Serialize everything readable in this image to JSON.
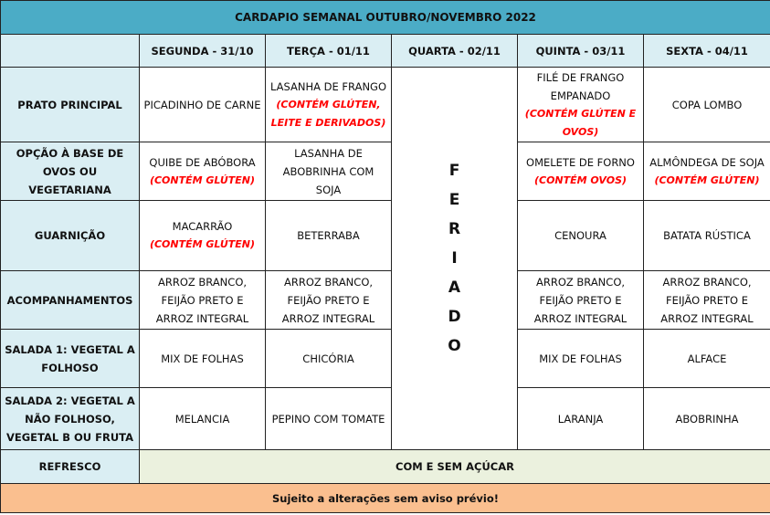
{
  "title": "CARDAPIO SEMANAL OUTUBRO/NOVEMBRO 2022",
  "days": [
    "SEGUNDA - 31/10",
    "TERÇA - 01/11",
    "QUARTA - 02/11",
    "QUINTA - 03/11",
    "SEXTA - 04/11"
  ],
  "holiday_letters": [
    "F",
    "E",
    "R",
    "I",
    "A",
    "D",
    "O"
  ],
  "rows": [
    {
      "label": "PRATO PRINCIPAL",
      "cells": [
        {
          "text": "PICADINHO DE CARNE",
          "note": ""
        },
        {
          "text": "LASANHA DE FRANGO",
          "note": "(CONTÉM GLÚTEN, LEITE E DERIVADOS)"
        },
        {
          "text": "FILÉ DE FRANGO EMPANADO",
          "note": "(CONTÉM GLÚTEN E OVOS)"
        },
        {
          "text": "COPA LOMBO",
          "note": ""
        }
      ]
    },
    {
      "label": "OPÇÃO À BASE DE OVOS OU VEGETARIANA",
      "cells": [
        {
          "text": "QUIBE DE ABÓBORA",
          "note": "(CONTÉM GLÚTEN)"
        },
        {
          "text": "LASANHA DE ABOBRINHA COM SOJA",
          "note": ""
        },
        {
          "text": "OMELETE DE FORNO",
          "note": "(CONTÉM OVOS)"
        },
        {
          "text": "ALMÔNDEGA DE SOJA",
          "note": "(CONTÉM GLÚTEN)"
        }
      ]
    },
    {
      "label": "GUARNIÇÃO",
      "cells": [
        {
          "text": "MACARRÃO",
          "note": "(CONTÉM GLÚTEN)"
        },
        {
          "text": "BETERRABA",
          "note": ""
        },
        {
          "text": "CENOURA",
          "note": ""
        },
        {
          "text": "BATATA RÚSTICA",
          "note": ""
        }
      ]
    },
    {
      "label": "ACOMPANHAMENTOS",
      "cells": [
        {
          "text": "ARROZ BRANCO, FEIJÃO PRETO E ARROZ INTEGRAL",
          "note": ""
        },
        {
          "text": "ARROZ BRANCO, FEIJÃO PRETO E ARROZ INTEGRAL",
          "note": ""
        },
        {
          "text": "ARROZ BRANCO, FEIJÃO PRETO E ARROZ INTEGRAL",
          "note": ""
        },
        {
          "text": "ARROZ BRANCO, FEIJÃO PRETO E ARROZ INTEGRAL",
          "note": ""
        }
      ]
    },
    {
      "label": "SALADA 1: VEGETAL A FOLHOSO",
      "cells": [
        {
          "text": "MIX DE FOLHAS",
          "note": ""
        },
        {
          "text": "CHICÓRIA",
          "note": ""
        },
        {
          "text": "MIX DE FOLHAS",
          "note": ""
        },
        {
          "text": "ALFACE",
          "note": ""
        }
      ]
    },
    {
      "label": "SALADA 2: VEGETAL A NÃO FOLHOSO, VEGETAL B OU FRUTA",
      "cells": [
        {
          "text": "MELANCIA",
          "note": ""
        },
        {
          "text": "PEPINO COM TOMATE",
          "note": ""
        },
        {
          "text": "LARANJA",
          "note": ""
        },
        {
          "text": "ABOBRINHA",
          "note": ""
        }
      ]
    }
  ],
  "refresco": {
    "label": "REFRESCO",
    "value": "COM E SEM AÇÚCAR"
  },
  "footer": "Sujeito a alterações sem aviso prévio!",
  "colors": {
    "title_bg": "#4bacc6",
    "header_bg": "#daeef3",
    "refresco_bg": "#ebf1de",
    "footer_bg": "#fabf8f",
    "allergen": "#ff0000"
  }
}
